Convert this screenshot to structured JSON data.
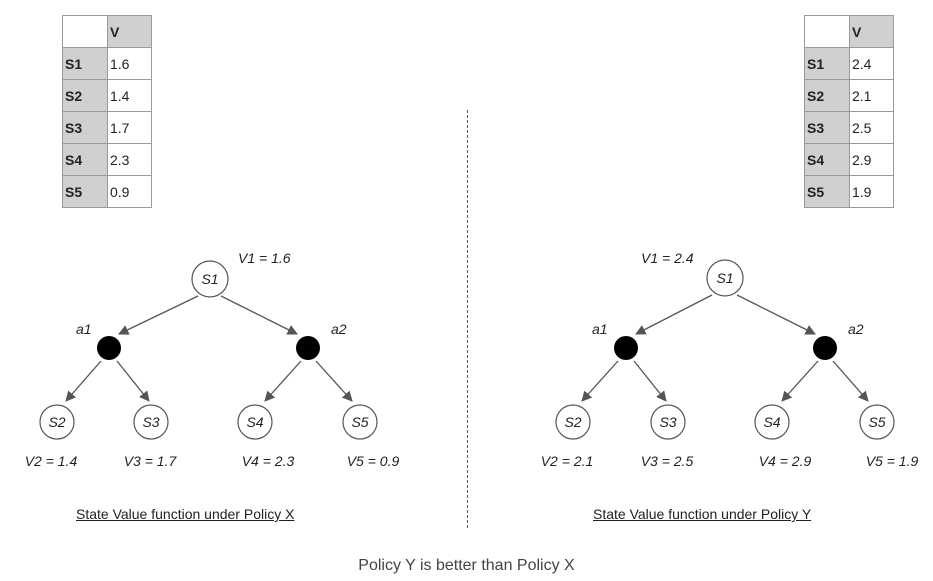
{
  "left": {
    "table": {
      "header": "V",
      "rows": [
        {
          "state": "S1",
          "value": "1.6"
        },
        {
          "state": "S2",
          "value": "1.4"
        },
        {
          "state": "S3",
          "value": "1.7"
        },
        {
          "state": "S4",
          "value": "2.3"
        },
        {
          "state": "S5",
          "value": "0.9"
        }
      ]
    },
    "tree": {
      "root": "S1",
      "root_value": "V1 = 1.6",
      "actions": [
        "a1",
        "a2"
      ],
      "leaves": [
        "S2",
        "S3",
        "S4",
        "S5"
      ],
      "leaf_values": [
        "V2 = 1.4",
        "V3 = 1.7",
        "V4 = 2.3",
        "V5 = 0.9"
      ]
    },
    "caption": "State Value function under Policy X"
  },
  "right": {
    "table": {
      "header": "V",
      "rows": [
        {
          "state": "S1",
          "value": "2.4"
        },
        {
          "state": "S2",
          "value": "2.1"
        },
        {
          "state": "S3",
          "value": "2.5"
        },
        {
          "state": "S4",
          "value": "2.9"
        },
        {
          "state": "S5",
          "value": "1.9"
        }
      ]
    },
    "tree": {
      "root": "S1",
      "root_value": "V1 = 2.4",
      "actions": [
        "a1",
        "a2"
      ],
      "leaves": [
        "S2",
        "S3",
        "S4",
        "S5"
      ],
      "leaf_values": [
        "V2 = 2.1",
        "V3 = 2.5",
        "V4 = 2.9",
        "V5 = 1.9"
      ]
    },
    "caption": "State Value function under Policy Y"
  },
  "conclusion": "Policy Y is better than Policy X",
  "colors": {
    "header_fill": "#d0d0d0",
    "edge": "#555555",
    "action_node": "#000000"
  }
}
